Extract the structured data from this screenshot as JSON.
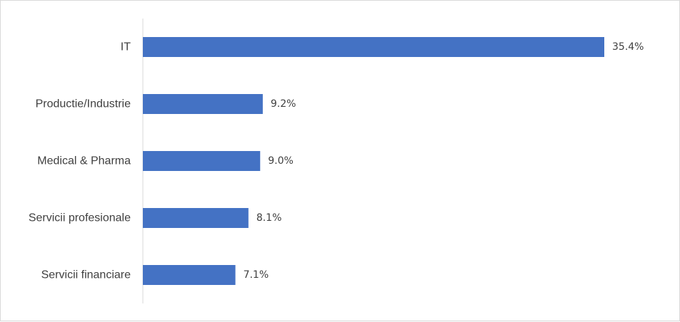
{
  "chart_data": {
    "type": "bar",
    "orientation": "horizontal",
    "categories": [
      "IT",
      "Productie/Industrie",
      "Medical & Pharma",
      "Servicii profesionale",
      "Servicii financiare"
    ],
    "values": [
      35.4,
      9.2,
      9.0,
      8.1,
      7.1
    ],
    "value_labels": [
      "35.4%",
      "9.2%",
      "9.0%",
      "8.1%",
      "7.1%"
    ],
    "title": "",
    "xlabel": "",
    "ylabel": "",
    "xlim": [
      0,
      35.4
    ],
    "grid": false,
    "legend": "none",
    "bar_color": "#4472C4"
  }
}
